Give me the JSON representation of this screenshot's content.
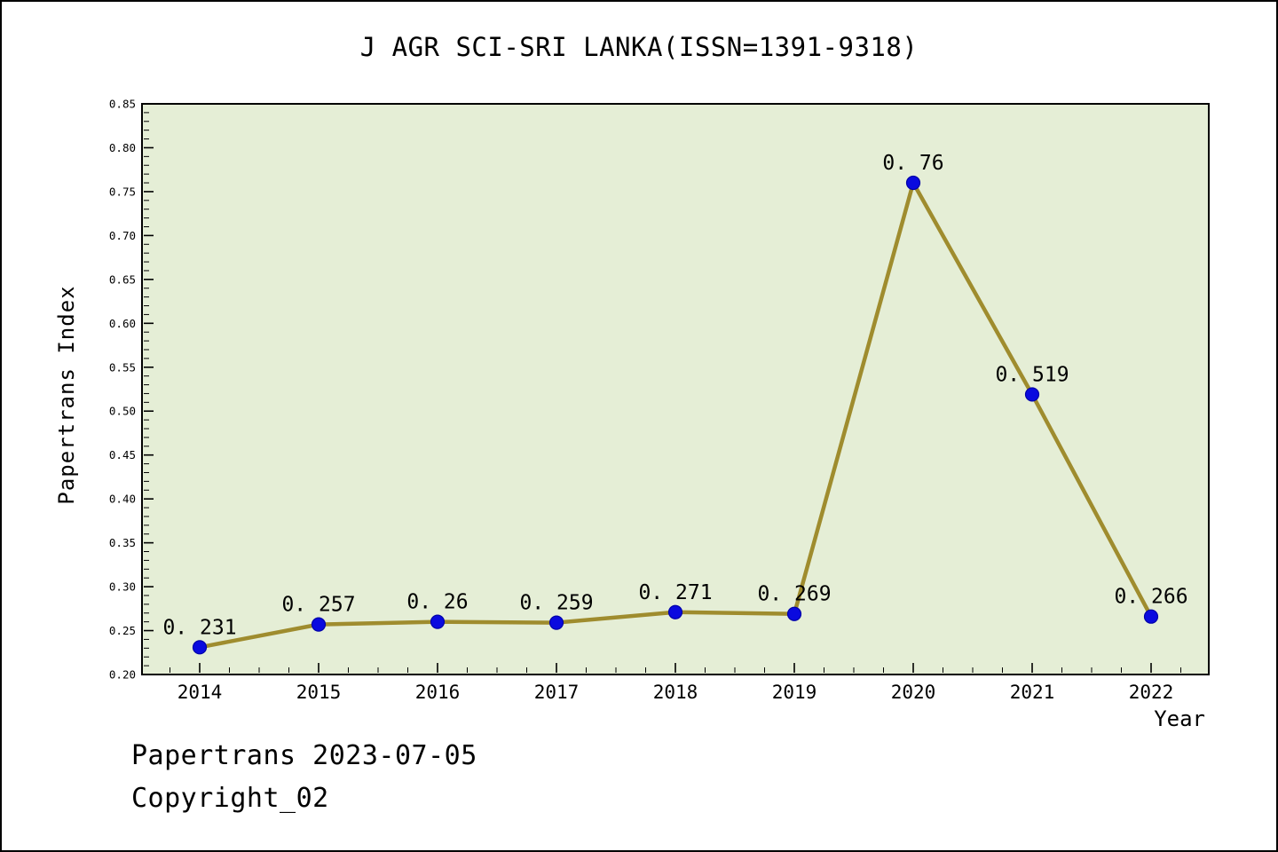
{
  "chart_data": {
    "type": "line",
    "title": "J AGR SCI-SRI LANKA(ISSN=1391-9318)",
    "xlabel": "Year",
    "ylabel": "Papertrans Index",
    "categories": [
      "2014",
      "2015",
      "2016",
      "2017",
      "2018",
      "2019",
      "2020",
      "2021",
      "2022"
    ],
    "values": [
      0.231,
      0.257,
      0.26,
      0.259,
      0.271,
      0.269,
      0.76,
      0.519,
      0.266
    ],
    "point_labels": [
      "0. 231",
      "0. 257",
      "0. 26",
      "0. 259",
      "0. 271",
      "0. 269",
      "0. 76",
      "0. 519",
      "0. 266"
    ],
    "ylim": [
      0.2,
      0.85
    ],
    "y_major_step": 0.05,
    "y_minor_step": 0.01,
    "yticks": [
      "0.20",
      "0.25",
      "0.30",
      "0.35",
      "0.40",
      "0.45",
      "0.50",
      "0.55",
      "0.60",
      "0.65",
      "0.70",
      "0.75",
      "0.80",
      "0.85"
    ],
    "grid": false,
    "legend": null,
    "colors": {
      "line": "#9f8c2e",
      "marker": "#0a0adf",
      "marker_edge": "#0000a8",
      "plot_bg": "#e5eed6",
      "text": "#000000",
      "frame": "#000000"
    }
  },
  "footer": {
    "line1": "Papertrans 2023-07-05",
    "line2": "Copyright_02"
  }
}
